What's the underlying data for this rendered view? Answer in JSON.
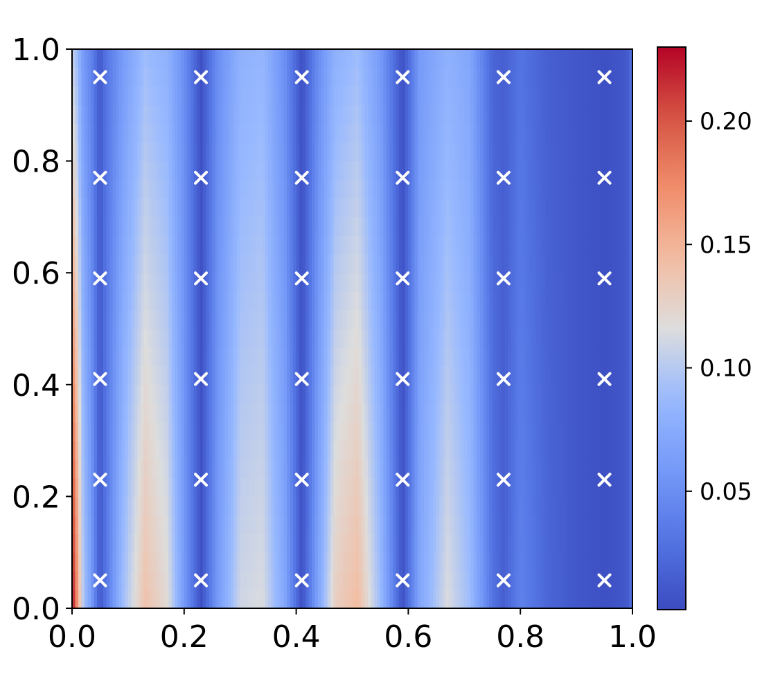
{
  "chart_data": {
    "type": "heatmap",
    "title": "",
    "xlabel": "",
    "ylabel": "",
    "xlim": [
      0.0,
      1.0
    ],
    "ylim": [
      0.0,
      1.0
    ],
    "x_ticks": [
      "0.0",
      "0.2",
      "0.4",
      "0.6",
      "0.8",
      "1.0"
    ],
    "y_ticks": [
      "0.0",
      "0.2",
      "0.4",
      "0.6",
      "0.8",
      "1.0"
    ],
    "colormap": "coolwarm",
    "grid": false,
    "colorbar": {
      "range": [
        0.002,
        0.23
      ],
      "ticks": [
        "0.05",
        "0.10",
        "0.15",
        "0.20"
      ],
      "tick_values": [
        0.05,
        0.1,
        0.15,
        0.2
      ]
    },
    "value_profile": {
      "note_x": [
        0.0,
        0.005,
        0.012,
        0.02,
        0.035,
        0.05,
        0.06,
        0.09,
        0.13,
        0.17,
        0.2,
        0.23,
        0.26,
        0.3,
        0.34,
        0.38,
        0.41,
        0.44,
        0.47,
        0.51,
        0.55,
        0.59,
        0.62,
        0.67,
        0.71,
        0.75,
        0.77,
        0.8,
        0.85,
        0.9,
        0.95,
        0.99,
        1.0
      ],
      "bottom": [
        0.23,
        0.2,
        0.15,
        0.1,
        0.06,
        0.01,
        0.03,
        0.09,
        0.14,
        0.12,
        0.06,
        0.005,
        0.06,
        0.11,
        0.115,
        0.07,
        0.005,
        0.07,
        0.13,
        0.145,
        0.09,
        0.005,
        0.07,
        0.115,
        0.09,
        0.03,
        0.015,
        0.04,
        0.02,
        0.01,
        0.005,
        0.01,
        0.03
      ],
      "top": [
        0.1,
        0.1,
        0.08,
        0.06,
        0.04,
        0.01,
        0.03,
        0.06,
        0.09,
        0.08,
        0.05,
        0.005,
        0.05,
        0.08,
        0.085,
        0.05,
        0.005,
        0.05,
        0.08,
        0.09,
        0.06,
        0.005,
        0.06,
        0.08,
        0.07,
        0.02,
        0.015,
        0.03,
        0.015,
        0.01,
        0.005,
        0.01,
        0.03
      ]
    },
    "markers": {
      "symbol": "×",
      "color": "#ffffff",
      "x": [
        0.05,
        0.23,
        0.41,
        0.59,
        0.77,
        0.95
      ],
      "y": [
        0.05,
        0.23,
        0.41,
        0.59,
        0.77,
        0.95
      ]
    }
  }
}
